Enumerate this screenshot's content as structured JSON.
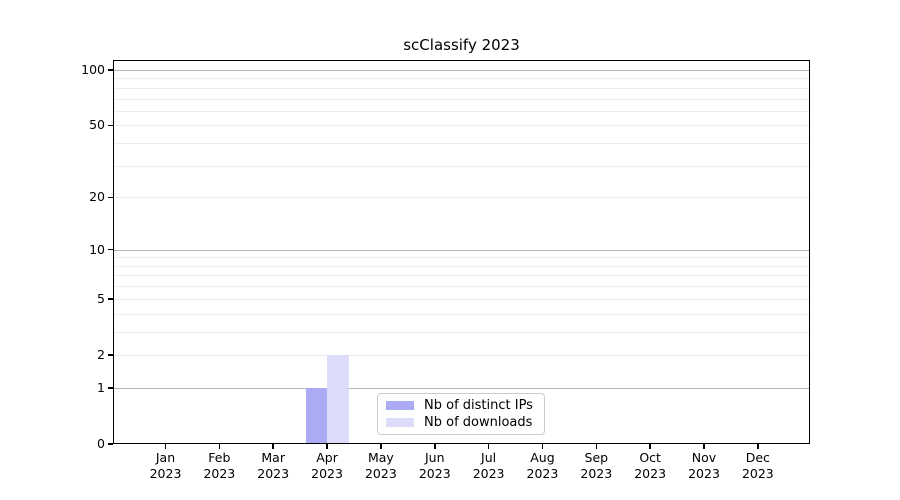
{
  "title": "scClassify 2023",
  "chart_data": {
    "type": "bar",
    "title": "scClassify 2023",
    "categories": [
      "Jan 2023",
      "Feb 2023",
      "Mar 2023",
      "Apr 2023",
      "May 2023",
      "Jun 2023",
      "Jul 2023",
      "Aug 2023",
      "Sep 2023",
      "Oct 2023",
      "Nov 2023",
      "Dec 2023"
    ],
    "series": [
      {
        "name": "Nb of distinct IPs",
        "color": "#aaaaf5",
        "values": [
          0,
          0,
          0,
          1,
          0,
          0,
          0,
          0,
          0,
          0,
          0,
          0
        ]
      },
      {
        "name": "Nb of downloads",
        "color": "#dcdcf8",
        "values": [
          0,
          0,
          0,
          2,
          0,
          0,
          0,
          0,
          0,
          0,
          0,
          0
        ]
      }
    ],
    "xlabel": "",
    "ylabel": "",
    "y_scale": "log1p",
    "ylim": [
      0,
      100
    ],
    "y_tick_labels": [
      0,
      1,
      2,
      5,
      10,
      20,
      50,
      100
    ],
    "y_major_gridlines": [
      1,
      10,
      100
    ],
    "y_minor_gridlines": [
      2,
      3,
      4,
      5,
      6,
      7,
      8,
      9,
      20,
      30,
      40,
      50,
      60,
      70,
      80,
      90
    ],
    "grid": "horizontal",
    "legend_position": "inside-bottom-center"
  },
  "colors": {
    "background": "#ffffff",
    "axis": "#000000",
    "major_grid": "#b4b4b4",
    "minor_grid": "#ececec",
    "legend_border": "#cccccc",
    "bar_distinct_ips": "#aaaaf5",
    "bar_downloads": "#dcdcf8"
  }
}
